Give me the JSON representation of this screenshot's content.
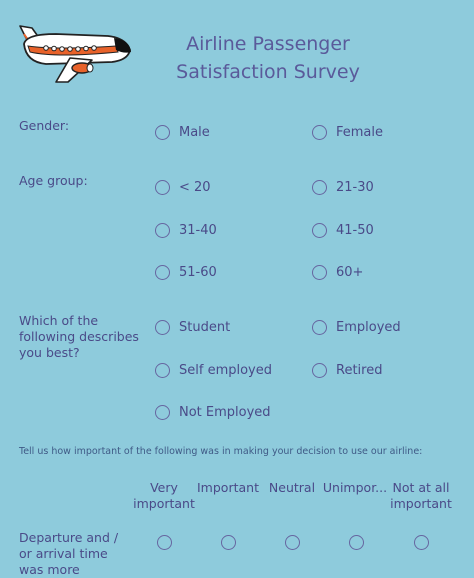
{
  "survey": {
    "title_line1": "Airline Passenger",
    "title_line2": "Satisfaction Survey"
  },
  "colors": {
    "background": "#8ecbdc",
    "text": "#4a4a88",
    "title": "#5a5a9a",
    "instruction": "#3f5a86"
  },
  "icons": {
    "logo": "airplane-icon"
  },
  "gender": {
    "label": "Gender:",
    "options": [
      "Male",
      "Female"
    ]
  },
  "age_group": {
    "label": "Age group:",
    "options": [
      "< 20",
      "21-30",
      "31-40",
      "41-50",
      "51-60",
      "60+"
    ]
  },
  "describes": {
    "label_line1": "Which of the",
    "label_line2": "following describes",
    "label_line3": "you best?",
    "options": [
      "Student",
      "Employed",
      "Self employed",
      "Retired",
      "Not Employed"
    ]
  },
  "importance": {
    "instruction": "Tell us how important of the following was in making your decision to use our airline:",
    "columns": [
      {
        "line1": "Very",
        "line2": "important"
      },
      {
        "line1": "Important",
        "line2": ""
      },
      {
        "line1": "Neutral",
        "line2": ""
      },
      {
        "line1": "Unimpor...",
        "line2": ""
      },
      {
        "line1": "Not at all",
        "line2": "important"
      }
    ],
    "rows": [
      {
        "line1": "Departure and /",
        "line2": "or arrival time",
        "line3": "was more"
      }
    ]
  }
}
